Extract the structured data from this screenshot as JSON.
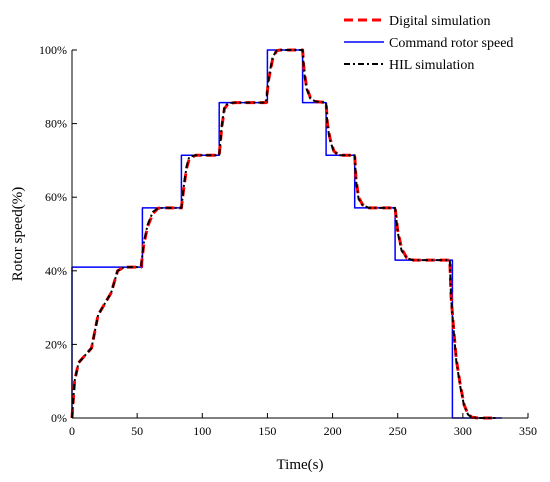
{
  "chart_data": {
    "type": "line",
    "xlabel": "Time(s)",
    "ylabel": "Rotor speed(%)",
    "xlim": [
      0,
      350
    ],
    "ylim": [
      0,
      100
    ],
    "x_ticks": [
      0,
      50,
      100,
      150,
      200,
      250,
      300,
      350
    ],
    "y_ticks": [
      0,
      20,
      40,
      60,
      80,
      100
    ],
    "y_tick_suffix": "%",
    "grid": false,
    "legend_position": "top-right",
    "series": [
      {
        "name": "Digital simulation",
        "color": "#ff0000",
        "style": "dashed",
        "x": [
          0,
          2,
          5,
          10,
          15,
          20,
          25,
          30,
          35,
          40,
          45,
          50,
          53,
          55,
          58,
          62,
          66,
          70,
          75,
          84,
          86,
          88,
          90,
          95,
          113,
          115,
          117,
          120,
          125,
          149,
          151,
          154,
          157,
          160,
          177,
          178,
          180,
          183,
          187,
          195,
          196,
          198,
          201,
          205,
          217,
          218,
          220,
          223,
          228,
          248,
          250,
          253,
          257,
          262,
          290,
          291,
          293,
          295,
          298,
          301,
          304,
          307,
          312,
          325
        ],
        "y": [
          0,
          10,
          15,
          17,
          19,
          28,
          31,
          34,
          40,
          41,
          41,
          41,
          41,
          47,
          52,
          55.5,
          57,
          57.1,
          57.1,
          57.1,
          63,
          68,
          70.5,
          71.4,
          71.4,
          79,
          84,
          85.5,
          85.7,
          85.7,
          92,
          97.5,
          99.8,
          100,
          100,
          95,
          90,
          87,
          86,
          85.7,
          80,
          76,
          72.5,
          71.4,
          71.4,
          65,
          60,
          58,
          57.1,
          57.1,
          51,
          46,
          43.5,
          42.9,
          42.9,
          33,
          24,
          16,
          9,
          3.5,
          1,
          0.2,
          0,
          0
        ]
      },
      {
        "name": "Command rotor speed",
        "color": "#0000ff",
        "style": "solid",
        "x": [
          0,
          0,
          54,
          54,
          84,
          84,
          113,
          113,
          150,
          150,
          177,
          177,
          195,
          195,
          217,
          217,
          248,
          248,
          292,
          292,
          330
        ],
        "y": [
          0,
          41,
          41,
          57.1,
          57.1,
          71.4,
          71.4,
          85.7,
          85.7,
          100,
          100,
          85.7,
          85.7,
          71.4,
          71.4,
          57.1,
          57.1,
          42.9,
          42.9,
          0,
          0
        ]
      },
      {
        "name": "HIL simulation",
        "color": "#000000",
        "style": "dash-dot",
        "x": [
          0,
          2,
          5,
          10,
          15,
          20,
          25,
          30,
          35,
          40,
          45,
          50,
          53,
          55,
          58,
          62,
          66,
          70,
          75,
          84,
          86,
          88,
          90,
          95,
          113,
          115,
          117,
          120,
          125,
          149,
          151,
          154,
          157,
          160,
          177,
          178,
          180,
          183,
          187,
          195,
          196,
          198,
          201,
          205,
          217,
          218,
          220,
          223,
          228,
          248,
          250,
          253,
          257,
          262,
          290,
          291,
          293,
          295,
          298,
          301,
          304,
          307,
          312,
          325
        ],
        "y": [
          0,
          10,
          15,
          17,
          19,
          28,
          31,
          34,
          40,
          41,
          41,
          41,
          41.3,
          47.5,
          52.5,
          56,
          57,
          57.1,
          57.1,
          57.1,
          63.5,
          68.5,
          71,
          71.4,
          71.4,
          79.5,
          84.5,
          85.6,
          85.7,
          85.7,
          92.5,
          98,
          99.8,
          100,
          100,
          94.5,
          89.5,
          86.8,
          86,
          85.7,
          79.5,
          75.5,
          72.3,
          71.4,
          71.4,
          64.5,
          59.5,
          57.8,
          57.1,
          57.1,
          50.5,
          45.5,
          43.4,
          42.9,
          42.9,
          32.5,
          23.5,
          15.5,
          8.5,
          3.2,
          0.9,
          0.2,
          0,
          0
        ]
      }
    ]
  }
}
